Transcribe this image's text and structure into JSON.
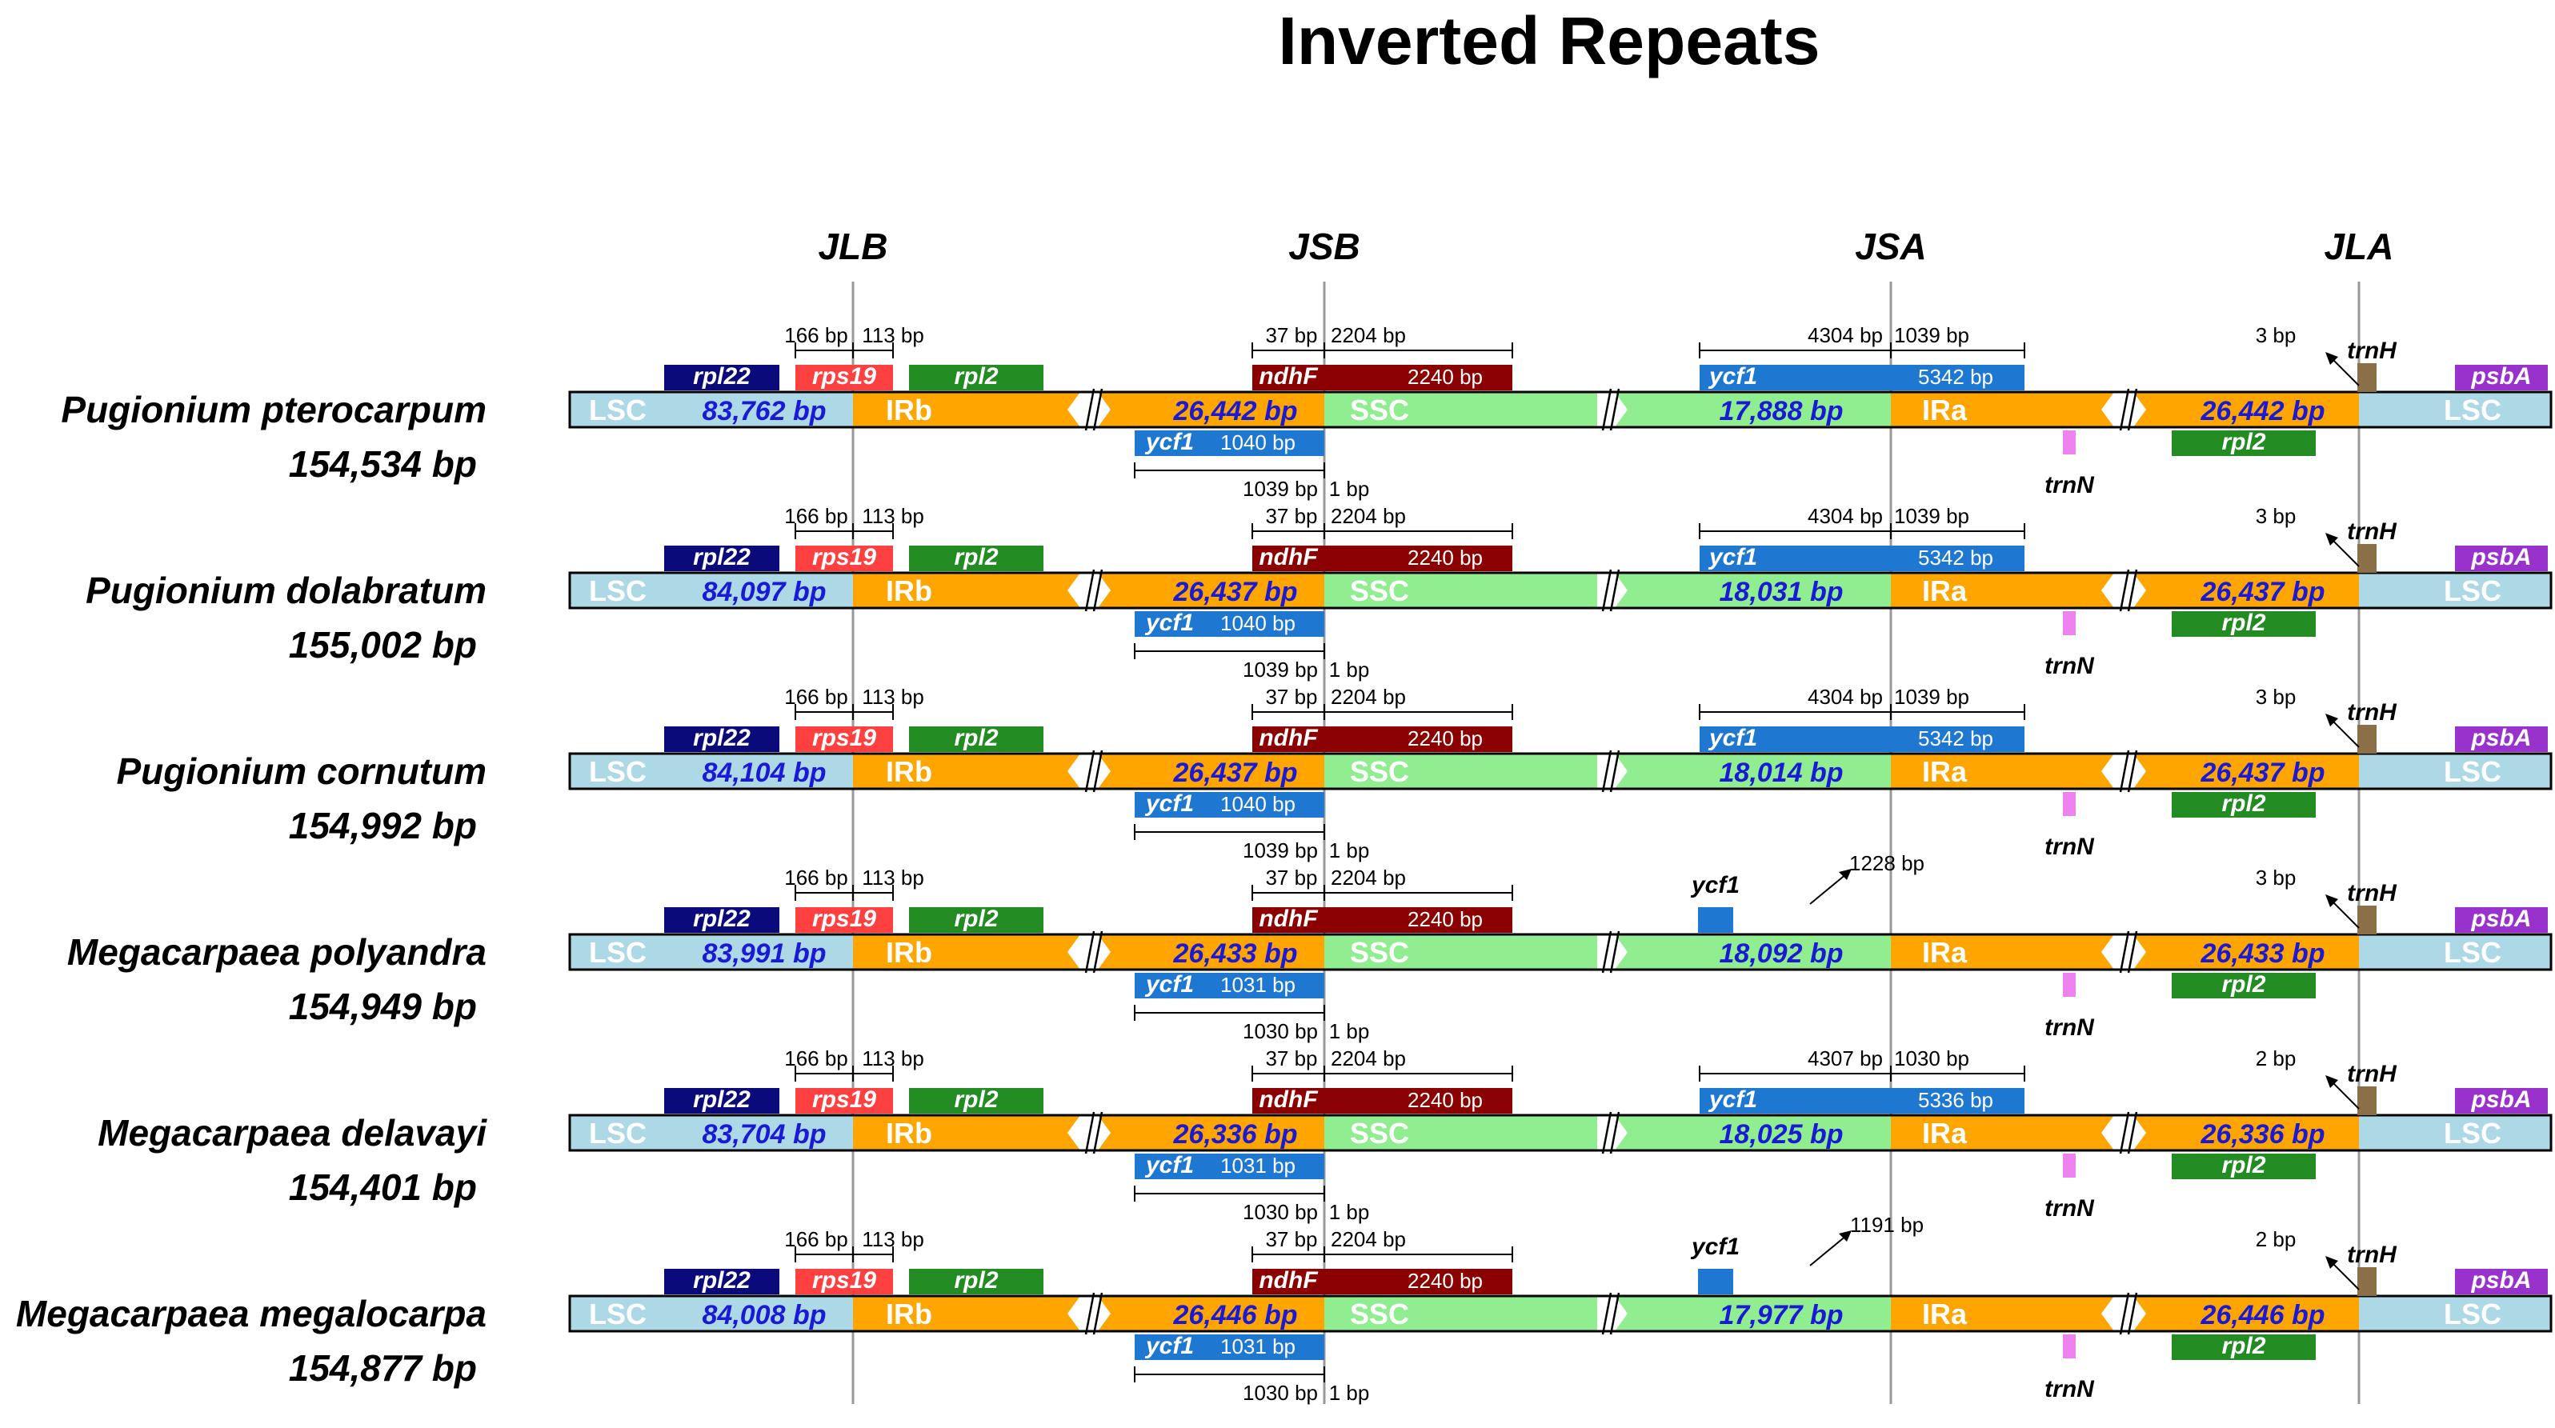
{
  "title": "Inverted Repeats",
  "junctions": [
    "JLB",
    "JSB",
    "JSA",
    "JLA"
  ],
  "colors": {
    "lsc": "#add8e6",
    "ir": "#ffa500",
    "ssc": "#90ee90",
    "rpl22": "#0a0a7a",
    "rps19": "#ff4040",
    "rpl2": "#228b22",
    "ndhF": "#8b0000",
    "ycf1": "#1e78d2",
    "trnN": "#ee82ee",
    "trnH": "#8b6f47",
    "psbA": "#9932cc",
    "size_text": "#1a1ad6",
    "junction_line": "#999999"
  },
  "region_labels": {
    "lsc": "LSC",
    "irb": "IRb",
    "ssc": "SSC",
    "ira": "IRa"
  },
  "gene_labels": {
    "rpl22": "rpl22",
    "rps19": "rps19",
    "rpl2": "rpl2",
    "ndhF": "ndhF",
    "ycf1": "ycf1",
    "trnN": "trnN",
    "trnH": "trnH",
    "psbA": "psbA"
  },
  "shared_spans": {
    "rps19_left": "166 bp",
    "rps19_right": "113 bp",
    "ndhF_left": "37 bp",
    "ndhF_right": "2204 bp",
    "ndhF_len": "2240 bp"
  },
  "species": [
    {
      "name": "Pugionium pterocarpum",
      "genome": "154,534 bp",
      "lsc": "83,762 bp",
      "ir": "26,442 bp",
      "ssc": "17,888 bp",
      "ycf1_long": true,
      "ycf1_left": "4304 bp",
      "ycf1_right": "1039 bp",
      "ycf1_len": "5342 bp",
      "ycf1_frag": "1040 bp",
      "frag_left": "1039 bp",
      "frag_right": "1 bp",
      "trnH_gap": "3 bp"
    },
    {
      "name": "Pugionium dolabratum",
      "genome": "155,002 bp",
      "lsc": "84,097 bp",
      "ir": "26,437 bp",
      "ssc": "18,031 bp",
      "ycf1_long": true,
      "ycf1_left": "4304 bp",
      "ycf1_right": "1039 bp",
      "ycf1_len": "5342 bp",
      "ycf1_frag": "1040 bp",
      "frag_left": "1039 bp",
      "frag_right": "1 bp",
      "trnH_gap": "3 bp"
    },
    {
      "name": "Pugionium cornutum",
      "genome": "154,992 bp",
      "lsc": "84,104 bp",
      "ir": "26,437 bp",
      "ssc": "18,014 bp",
      "ycf1_long": true,
      "ycf1_left": "4304 bp",
      "ycf1_right": "1039 bp",
      "ycf1_len": "5342 bp",
      "ycf1_frag": "1040 bp",
      "frag_left": "1039 bp",
      "frag_right": "1 bp",
      "trnH_gap": "3 bp"
    },
    {
      "name": "Megacarpaea polyandra",
      "genome": "154,949 bp",
      "lsc": "83,991 bp",
      "ir": "26,433 bp",
      "ssc": "18,092 bp",
      "ycf1_long": false,
      "ycf1_arrow": "1228 bp",
      "ycf1_frag": "1031 bp",
      "frag_left": "1030 bp",
      "frag_right": "1 bp",
      "trnH_gap": "3 bp"
    },
    {
      "name": "Megacarpaea delavayi",
      "genome": "154,401 bp",
      "lsc": "83,704 bp",
      "ir": "26,336 bp",
      "ssc": "18,025 bp",
      "ycf1_long": true,
      "ycf1_left": "4307 bp",
      "ycf1_right": "1030 bp",
      "ycf1_len": "5336 bp",
      "ycf1_frag": "1031 bp",
      "frag_left": "1030 bp",
      "frag_right": "1 bp",
      "trnH_gap": "2 bp"
    },
    {
      "name": "Megacarpaea megalocarpa",
      "genome": "154,877 bp",
      "lsc": "84,008 bp",
      "ir": "26,446 bp",
      "ssc": "17,977 bp",
      "ycf1_long": false,
      "ycf1_arrow": "1191 bp",
      "ycf1_frag": "1031 bp",
      "frag_left": "1030 bp",
      "frag_right": "1 bp",
      "trnH_gap": "2 bp"
    }
  ]
}
